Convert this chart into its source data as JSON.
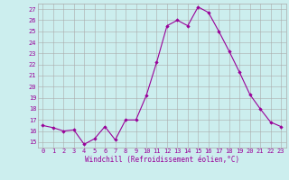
{
  "x": [
    0,
    1,
    2,
    3,
    4,
    5,
    6,
    7,
    8,
    9,
    10,
    11,
    12,
    13,
    14,
    15,
    16,
    17,
    18,
    19,
    20,
    21,
    22,
    23
  ],
  "y": [
    16.5,
    16.3,
    16.0,
    16.1,
    14.8,
    15.3,
    16.4,
    15.2,
    17.0,
    17.0,
    19.2,
    22.2,
    25.5,
    26.0,
    25.5,
    27.2,
    26.7,
    25.0,
    23.2,
    21.3,
    19.3,
    18.0,
    16.8,
    16.4
  ],
  "line_color": "#990099",
  "marker_color": "#990099",
  "bg_color": "#cceeee",
  "grid_color": "#aaaaaa",
  "xlabel": "Windchill (Refroidissement éolien,°C)",
  "xlim": [
    -0.5,
    23.5
  ],
  "ylim": [
    14.5,
    27.5
  ],
  "yticks": [
    15,
    16,
    17,
    18,
    19,
    20,
    21,
    22,
    23,
    24,
    25,
    26,
    27
  ],
  "xticks": [
    0,
    1,
    2,
    3,
    4,
    5,
    6,
    7,
    8,
    9,
    10,
    11,
    12,
    13,
    14,
    15,
    16,
    17,
    18,
    19,
    20,
    21,
    22,
    23
  ],
  "label_fontsize": 5.5,
  "tick_fontsize": 5.0
}
